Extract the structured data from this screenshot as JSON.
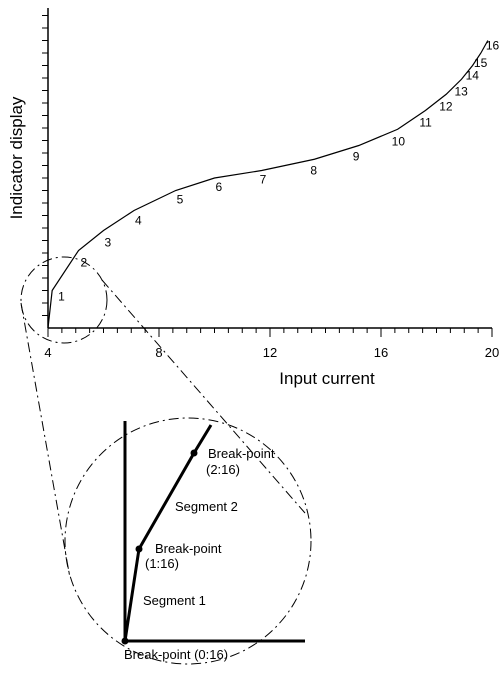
{
  "chart_data": {
    "type": "line",
    "xlabel": "Input current",
    "ylabel": "Indicator display",
    "xlim": [
      4,
      20
    ],
    "x_ticks": [
      "4",
      "8",
      "12",
      "16",
      "20"
    ],
    "series": [
      {
        "points": [
          {
            "label": "1",
            "x": 4.15,
            "y": 1.5
          },
          {
            "label": "2",
            "x": 5.1,
            "y": 3.1
          },
          {
            "label": "3",
            "x": 6.0,
            "y": 3.9
          },
          {
            "label": "4",
            "x": 7.1,
            "y": 4.7
          },
          {
            "label": "5",
            "x": 8.6,
            "y": 5.5
          },
          {
            "label": "6",
            "x": 10.0,
            "y": 6.0
          },
          {
            "label": "7",
            "x": 11.7,
            "y": 6.3
          },
          {
            "label": "8",
            "x": 13.6,
            "y": 6.75
          },
          {
            "label": "9",
            "x": 15.2,
            "y": 7.3
          },
          {
            "label": "10",
            "x": 16.6,
            "y": 7.95
          },
          {
            "label": "11",
            "x": 17.6,
            "y": 8.7
          },
          {
            "label": "12",
            "x": 18.35,
            "y": 9.35
          },
          {
            "label": "13",
            "x": 18.9,
            "y": 9.95
          },
          {
            "label": "14",
            "x": 19.3,
            "y": 10.5
          },
          {
            "label": "15",
            "x": 19.6,
            "y": 11.0
          },
          {
            "label": "16",
            "x": 19.85,
            "y": 11.5
          }
        ]
      }
    ],
    "inset": {
      "segments": [
        "Segment 1",
        "Segment 2"
      ],
      "breakpoints": [
        {
          "label": "Break-point (0:16)"
        },
        {
          "label": "Break-point",
          "sub": "(1:16)"
        },
        {
          "label": "Break-point",
          "sub": "(2:16)"
        }
      ]
    }
  }
}
